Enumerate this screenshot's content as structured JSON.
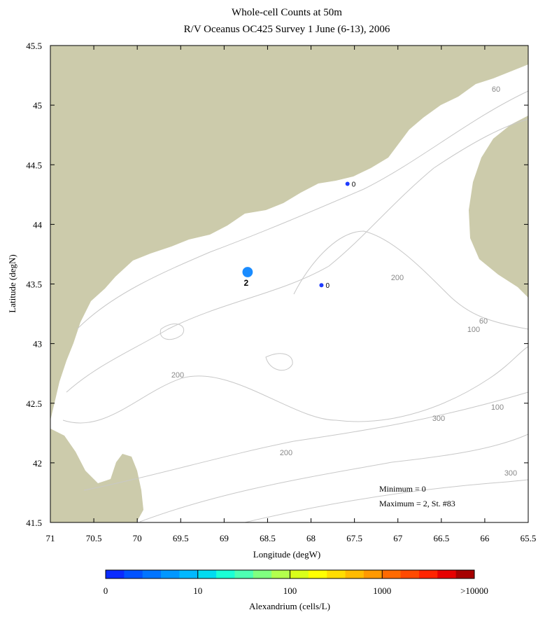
{
  "chart_data": {
    "type": "map-scatter",
    "title": "Whole-cell Counts at 50m",
    "subtitle": "R/V Oceanus OC425 Survey 1 June (6-13), 2006",
    "x_label": "Longitude (degW)",
    "y_label": "Latitude (degN)",
    "xlim": [
      71,
      65.5
    ],
    "ylim": [
      41.5,
      45.5
    ],
    "xticks": [
      71,
      70.5,
      70,
      69.5,
      69,
      68.5,
      68,
      67.5,
      67,
      66.5,
      66,
      65.5
    ],
    "yticks": [
      41.5,
      42,
      42.5,
      43,
      43.5,
      44,
      44.5,
      45,
      45.5
    ],
    "x": [
      68.73,
      67.58,
      67.88
    ],
    "y": [
      43.6,
      44.34,
      43.49
    ],
    "values": [
      2,
      0,
      0
    ],
    "colors": [
      "#1a8cff",
      "#1f3cff",
      "#1f3cff"
    ],
    "contour_labels": [
      60,
      200,
      100,
      60,
      200,
      100,
      300,
      200,
      300
    ],
    "annotations": [
      "Minimum = 0",
      "Maximum = 2, St. #83"
    ],
    "land_color": "#cccbab",
    "colorbar": {
      "label": "Alexandrium (cells/L)",
      "ticks": [
        0,
        10,
        100,
        1000,
        {
          "value": 10000,
          "label": ">10000"
        }
      ],
      "colors": [
        "#0a2bff",
        "#0052ff",
        "#0074ff",
        "#0097ff",
        "#00b9ff",
        "#00dcf0",
        "#1affd6",
        "#4dffb3",
        "#80ff80",
        "#b3ff4d",
        "#d9ff1a",
        "#ffff00",
        "#ffdd00",
        "#ffbb00",
        "#ff9900",
        "#ff6a00",
        "#ff4a00",
        "#ff2400",
        "#e60000",
        "#a60000"
      ]
    }
  }
}
